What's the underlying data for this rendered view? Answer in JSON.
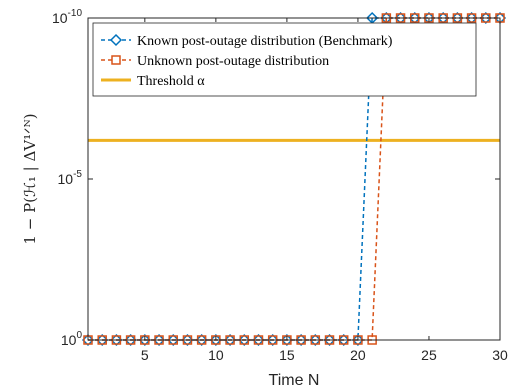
{
  "chart_data": {
    "type": "line",
    "xlabel": "Time N",
    "ylabel": "1 − P(ℋ₁ | ΔV¹ᐟᴺ)",
    "y_scale": "log",
    "xlim": [
      1,
      30
    ],
    "ylim_log10": [
      -10,
      0
    ],
    "x_ticks": [
      5,
      10,
      15,
      20,
      25,
      30
    ],
    "x_tick_labels": [
      "5",
      "10",
      "15",
      "20",
      "25",
      "30"
    ],
    "y_ticks_log10": [
      0,
      -5,
      -10
    ],
    "y_tick_labels": [
      {
        "base": "10",
        "exp": "0"
      },
      {
        "base": "10",
        "exp": "-5"
      },
      {
        "base": "10",
        "exp": "-10"
      }
    ],
    "grid": false,
    "legend_position": "top",
    "series": [
      {
        "name": "Known post-outage distribution (Benchmark)",
        "color": "#0072BD",
        "line_style": "dashed",
        "marker": "diamond",
        "x": [
          1,
          2,
          3,
          4,
          5,
          6,
          7,
          8,
          9,
          10,
          11,
          12,
          13,
          14,
          15,
          16,
          17,
          18,
          19,
          20,
          21,
          22,
          23,
          24,
          25,
          26,
          27,
          28,
          29,
          30
        ],
        "y_log10": [
          0,
          0,
          0,
          0,
          0,
          0,
          0,
          0,
          0,
          0,
          0,
          0,
          0,
          0,
          0,
          0,
          0,
          0,
          0,
          0,
          -10,
          -10,
          -10,
          -10,
          -10,
          -10,
          -10,
          -10,
          -10,
          -10
        ]
      },
      {
        "name": "Unknown post-outage distribution",
        "color": "#D95319",
        "line_style": "dashed",
        "marker": "square",
        "x": [
          1,
          2,
          3,
          4,
          5,
          6,
          7,
          8,
          9,
          10,
          11,
          12,
          13,
          14,
          15,
          16,
          17,
          18,
          19,
          20,
          21,
          22,
          23,
          24,
          25,
          26,
          27,
          28,
          29,
          30
        ],
        "y_log10": [
          0,
          0,
          0,
          0,
          0,
          0,
          0,
          0,
          0,
          0,
          0,
          0,
          0,
          0,
          0,
          0,
          0,
          0,
          0,
          0,
          0,
          -10,
          -10,
          -10,
          -10,
          -10,
          -10,
          -10,
          -10,
          -10
        ]
      }
    ],
    "threshold": {
      "name": "Threshold α",
      "color": "#EDB120",
      "y_log10": -6.2
    }
  }
}
